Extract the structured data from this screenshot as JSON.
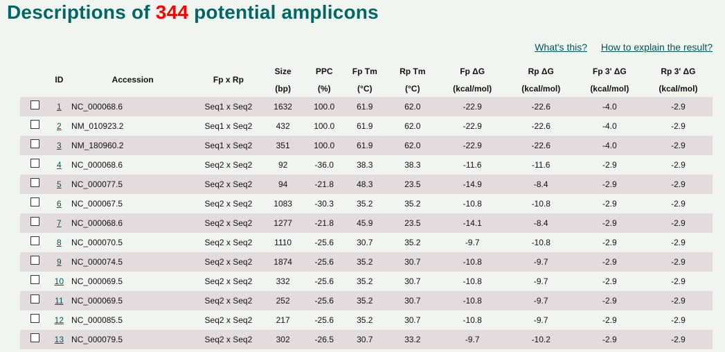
{
  "title": {
    "prefix": "Descriptions of",
    "count": "344",
    "suffix": "potential amplicons"
  },
  "links": {
    "whats_this": "What's this?",
    "how_to_explain": "How to explain the result?"
  },
  "columns": [
    {
      "top": "ID",
      "bottom": ""
    },
    {
      "top": "Accession",
      "bottom": ""
    },
    {
      "top": "Fp x Rp",
      "bottom": ""
    },
    {
      "top": "Size",
      "bottom": "(bp)"
    },
    {
      "top": "PPC",
      "bottom": "(%)"
    },
    {
      "top": "Fp Tm",
      "bottom": "(°C)"
    },
    {
      "top": "Rp Tm",
      "bottom": "(°C)"
    },
    {
      "top": "Fp ΔG",
      "bottom": "(kcal/mol)"
    },
    {
      "top": "Rp ΔG",
      "bottom": "(kcal/mol)"
    },
    {
      "top": "Fp 3' ΔG",
      "bottom": "(kcal/mol)"
    },
    {
      "top": "Rp 3' ΔG",
      "bottom": "(kcal/mol)"
    }
  ],
  "rows": [
    {
      "id": "1",
      "accession": "NC_000068.6",
      "pair": "Seq1 x Seq2",
      "size": "1632",
      "ppc": "100.0",
      "fp_tm": "61.9",
      "rp_tm": "62.0",
      "fp_dg": "-22.9",
      "rp_dg": "-22.6",
      "fp3_dg": "-4.0",
      "rp3_dg": "-2.9"
    },
    {
      "id": "2",
      "accession": "NM_010923.2",
      "pair": "Seq1 x Seq2",
      "size": "432",
      "ppc": "100.0",
      "fp_tm": "61.9",
      "rp_tm": "62.0",
      "fp_dg": "-22.9",
      "rp_dg": "-22.6",
      "fp3_dg": "-4.0",
      "rp3_dg": "-2.9"
    },
    {
      "id": "3",
      "accession": "NM_180960.2",
      "pair": "Seq1 x Seq2",
      "size": "351",
      "ppc": "100.0",
      "fp_tm": "61.9",
      "rp_tm": "62.0",
      "fp_dg": "-22.9",
      "rp_dg": "-22.6",
      "fp3_dg": "-4.0",
      "rp3_dg": "-2.9"
    },
    {
      "id": "4",
      "accession": "NC_000068.6",
      "pair": "Seq2 x Seq2",
      "size": "92",
      "ppc": "-36.0",
      "fp_tm": "38.3",
      "rp_tm": "38.3",
      "fp_dg": "-11.6",
      "rp_dg": "-11.6",
      "fp3_dg": "-2.9",
      "rp3_dg": "-2.9"
    },
    {
      "id": "5",
      "accession": "NC_000077.5",
      "pair": "Seq2 x Seq2",
      "size": "94",
      "ppc": "-21.8",
      "fp_tm": "48.3",
      "rp_tm": "23.5",
      "fp_dg": "-14.9",
      "rp_dg": "-8.4",
      "fp3_dg": "-2.9",
      "rp3_dg": "-2.9"
    },
    {
      "id": "6",
      "accession": "NC_000067.5",
      "pair": "Seq2 x Seq2",
      "size": "1083",
      "ppc": "-30.3",
      "fp_tm": "35.2",
      "rp_tm": "35.2",
      "fp_dg": "-10.8",
      "rp_dg": "-10.8",
      "fp3_dg": "-2.9",
      "rp3_dg": "-2.9"
    },
    {
      "id": "7",
      "accession": "NC_000068.6",
      "pair": "Seq2 x Seq2",
      "size": "1277",
      "ppc": "-21.8",
      "fp_tm": "45.9",
      "rp_tm": "23.5",
      "fp_dg": "-14.1",
      "rp_dg": "-8.4",
      "fp3_dg": "-2.9",
      "rp3_dg": "-2.9"
    },
    {
      "id": "8",
      "accession": "NC_000070.5",
      "pair": "Seq2 x Seq2",
      "size": "1110",
      "ppc": "-25.6",
      "fp_tm": "30.7",
      "rp_tm": "35.2",
      "fp_dg": "-9.7",
      "rp_dg": "-10.8",
      "fp3_dg": "-2.9",
      "rp3_dg": "-2.9"
    },
    {
      "id": "9",
      "accession": "NC_000074.5",
      "pair": "Seq2 x Seq2",
      "size": "1874",
      "ppc": "-25.6",
      "fp_tm": "35.2",
      "rp_tm": "30.7",
      "fp_dg": "-10.8",
      "rp_dg": "-9.7",
      "fp3_dg": "-2.9",
      "rp3_dg": "-2.9"
    },
    {
      "id": "10",
      "accession": "NC_000069.5",
      "pair": "Seq2 x Seq2",
      "size": "332",
      "ppc": "-25.6",
      "fp_tm": "35.2",
      "rp_tm": "30.7",
      "fp_dg": "-10.8",
      "rp_dg": "-9.7",
      "fp3_dg": "-2.9",
      "rp3_dg": "-2.9"
    },
    {
      "id": "11",
      "accession": "NC_000069.5",
      "pair": "Seq2 x Seq2",
      "size": "252",
      "ppc": "-25.6",
      "fp_tm": "35.2",
      "rp_tm": "30.7",
      "fp_dg": "-10.8",
      "rp_dg": "-9.7",
      "fp3_dg": "-2.9",
      "rp3_dg": "-2.9"
    },
    {
      "id": "12",
      "accession": "NC_000085.5",
      "pair": "Seq2 x Seq2",
      "size": "217",
      "ppc": "-25.6",
      "fp_tm": "35.2",
      "rp_tm": "30.7",
      "fp_dg": "-10.8",
      "rp_dg": "-9.7",
      "fp3_dg": "-2.9",
      "rp3_dg": "-2.9"
    },
    {
      "id": "13",
      "accession": "NC_000079.5",
      "pair": "Seq2 x Seq2",
      "size": "302",
      "ppc": "-26.5",
      "fp_tm": "30.7",
      "rp_tm": "33.2",
      "fp_dg": "-9.7",
      "rp_dg": "-10.2",
      "fp3_dg": "-2.9",
      "rp3_dg": "-2.9"
    }
  ]
}
